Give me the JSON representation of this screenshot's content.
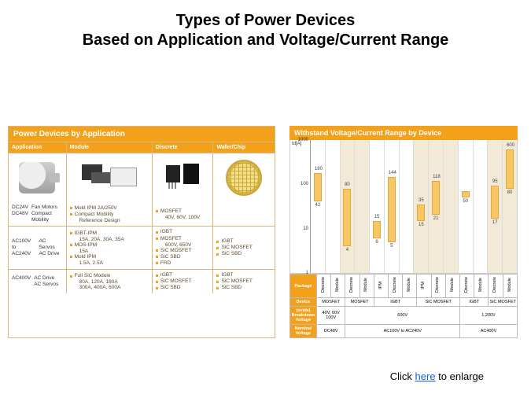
{
  "title_line1": "Types of Power Devices",
  "title_line2": "Based on Application and Voltage/Current Range",
  "colors": {
    "accent": "#f3a11b",
    "bar_fill": "#f7c766",
    "bar_border": "#e0a93a",
    "panel_border": "#d8b878",
    "grid": "#dddddd",
    "shade": "#f2ead6",
    "text_muted": "#5a4a2a",
    "background": "#ffffff"
  },
  "left": {
    "header": "Power Devices by Application",
    "columns": [
      "Application",
      "Module",
      "Discrete",
      "Wafer/Chip"
    ],
    "image_alts": [
      "motor",
      "power-modules",
      "discrete-transistors",
      "wafer"
    ],
    "rows": [
      {
        "app": [
          "DC24V",
          "DC48V"
        ],
        "app_desc": [
          "Fan Motors",
          "Compact Mobility"
        ],
        "module": [
          {
            "t": "Mold IPM 2A/250V",
            "b": true
          },
          {
            "t": "Compact Mobility",
            "b": true
          },
          {
            "t": "Reference Design",
            "b": false
          }
        ],
        "discrete": [
          {
            "t": "MOSFET",
            "b": true
          },
          {
            "t": "40V, 60V, 100V",
            "b": false
          }
        ],
        "wafer": []
      },
      {
        "app": [
          "AC100V to",
          "AC240V"
        ],
        "app_desc": [
          "AC Servos",
          "AC Drive"
        ],
        "module": [
          {
            "t": "IGBT-IPM",
            "b": true
          },
          {
            "t": "15A, 20A, 30A, 35A",
            "b": false
          },
          {
            "t": "MOS-IPM",
            "b": true
          },
          {
            "t": "15A",
            "b": false
          },
          {
            "t": "Mold IPM",
            "b": true
          },
          {
            "t": "1.5A, 2.5A",
            "b": false
          }
        ],
        "discrete": [
          {
            "t": "IGBT",
            "b": true
          },
          {
            "t": "MOSFET",
            "b": true
          },
          {
            "t": "600V, 650V",
            "b": false
          },
          {
            "t": "SiC MOSFET",
            "b": true
          },
          {
            "t": "SiC SBD",
            "b": true
          },
          {
            "t": "FRD",
            "b": true
          }
        ],
        "wafer": [
          {
            "t": "IGBT",
            "b": true
          },
          {
            "t": "SiC MOSFET",
            "b": true
          },
          {
            "t": "SiC SBD",
            "b": true
          }
        ]
      },
      {
        "app": [
          "AC400V"
        ],
        "app_desc": [
          "AC Drive",
          "AC Servos"
        ],
        "module": [
          {
            "t": "Full SiC Module",
            "b": true
          },
          {
            "t": "80A, 120A, 180A",
            "b": false
          },
          {
            "t": "300A, 400A, 600A",
            "b": false
          }
        ],
        "discrete": [
          {
            "t": "IGBT",
            "b": true
          },
          {
            "t": "SiC MOSFET",
            "b": true
          },
          {
            "t": "SiC SBD",
            "b": true
          }
        ],
        "wafer": [
          {
            "t": "IGBT",
            "b": true
          },
          {
            "t": "SiC MOSFET",
            "b": true
          },
          {
            "t": "SiC SBD",
            "b": true
          }
        ]
      }
    ]
  },
  "right": {
    "header": "Withstand Voltage/Current Range by Device",
    "y_axis": {
      "title": "Id[A]",
      "scale": "log",
      "min": 1,
      "max": 1000,
      "ticks": [
        1,
        10,
        100,
        1000
      ],
      "tick_labels": [
        "1",
        "10",
        "100",
        "1000"
      ]
    },
    "slots": [
      {
        "package": "Discrete",
        "shade": false,
        "low": 42,
        "high": 180
      },
      {
        "package": "Module",
        "shade": false,
        "low": null,
        "high": null
      },
      {
        "package": "Discrete",
        "shade": true,
        "low": 4,
        "high": 80
      },
      {
        "package": "Module",
        "shade": true,
        "low": null,
        "high": null
      },
      {
        "package": "IPM",
        "shade": false,
        "low": 6,
        "high": 15
      },
      {
        "package": "Discrete",
        "shade": false,
        "low": 5,
        "high": 144
      },
      {
        "package": "Module",
        "shade": false,
        "low": null,
        "high": null
      },
      {
        "package": "IPM",
        "shade": true,
        "low": 15,
        "high": 35
      },
      {
        "package": "Discrete",
        "shade": true,
        "low": 21,
        "high": 118
      },
      {
        "package": "Module",
        "shade": true,
        "low": null,
        "high": null
      },
      {
        "package": "Discrete",
        "shade": false,
        "low": 50,
        "high": null
      },
      {
        "package": "Module",
        "shade": false,
        "low": null,
        "high": null
      },
      {
        "package": "Discrete",
        "shade": true,
        "low": 17,
        "high": 95
      },
      {
        "package": "Module",
        "shade": true,
        "low": 80,
        "high": 600
      }
    ],
    "device_row": {
      "label": "Device",
      "cells": [
        {
          "span": 2,
          "text": "MOSFET"
        },
        {
          "span": 2,
          "text": "MOSFET"
        },
        {
          "span": 3,
          "text": "IGBT"
        },
        {
          "span": 3,
          "text": "SiC MOSFET"
        },
        {
          "span": 2,
          "text": "IGBT"
        },
        {
          "span": 2,
          "text": "SiC MOSFET"
        }
      ]
    },
    "breakdown_row": {
      "label": "(oxide) Breakdown Voltage",
      "cells": [
        {
          "span": 2,
          "text": "40V, 60V 100V"
        },
        {
          "span": 8,
          "text": "600V"
        },
        {
          "span": 4,
          "text": "1,200V"
        }
      ]
    },
    "nominal_row": {
      "label": "Nominal Voltage",
      "cells": [
        {
          "span": 2,
          "text": "DC48V"
        },
        {
          "span": 8,
          "text": "AC100V to AC240V"
        },
        {
          "span": 4,
          "text": "AC400V"
        }
      ]
    },
    "package_row_label": "Package"
  },
  "footer": {
    "prefix": "Click ",
    "link": "here",
    "suffix": " to enlarge"
  }
}
